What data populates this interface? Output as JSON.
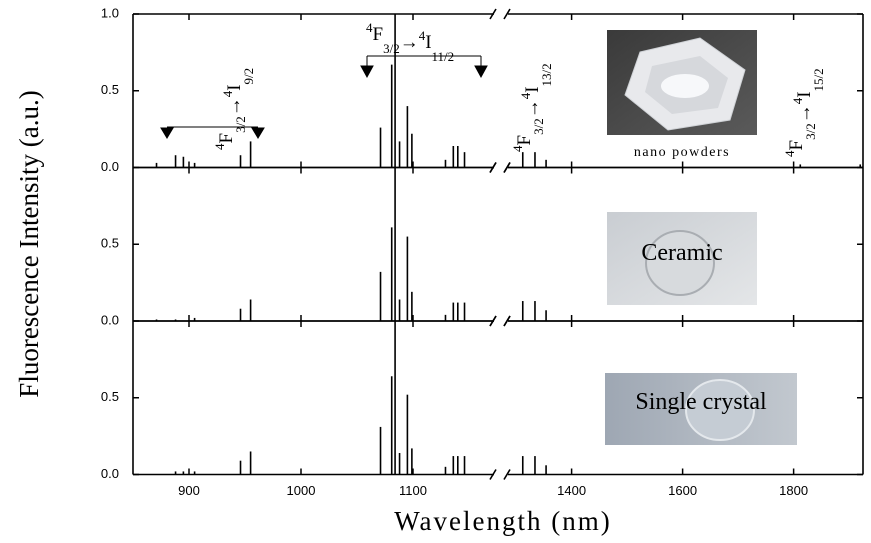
{
  "chart_data": [
    {
      "type": "stem",
      "color": "#000000",
      "inset": "nano powders",
      "xsegments": [
        [
          850,
          1175
        ],
        [
          1280,
          1925
        ]
      ],
      "ylim": [
        0,
        1
      ],
      "yticks": [
        {
          "value": 0,
          "label": "0.0"
        },
        0.5,
        {
          "value": 1,
          "label": "1.0"
        }
      ],
      "x": [
        871,
        888,
        895,
        905,
        946,
        955,
        1071,
        1081,
        1084,
        1088,
        1095,
        1099,
        1129,
        1136,
        1140,
        1146,
        1312,
        1334,
        1354,
        1812,
        1920
      ],
      "values": [
        0.03,
        0.08,
        0.07,
        0.03,
        0.08,
        0.17,
        0.26,
        0.67,
        1.0,
        0.17,
        0.4,
        0.22,
        0.05,
        0.14,
        0.14,
        0.1,
        0.1,
        0.1,
        0.05,
        0.02,
        0.02
      ],
      "annotations": [
        {
          "parts": [
            "4",
            "F",
            "3/2",
            "→",
            "4",
            "I",
            "9/2"
          ]
        },
        {
          "parts": [
            "4",
            "F",
            "3/2",
            "→",
            "4",
            "I",
            "11/2"
          ]
        },
        {
          "parts": [
            "4",
            "F",
            "3/2",
            "→",
            "4",
            "I",
            "13/2"
          ]
        },
        {
          "parts": [
            "4",
            "F",
            "3/2",
            "→",
            "4",
            "I",
            "15/2"
          ]
        }
      ]
    },
    {
      "type": "stem",
      "color": "#000000",
      "inset": "Ceramic",
      "ylabel": "Fluorescence Intensity (a.u.)",
      "xsegments": [
        [
          850,
          1175
        ],
        [
          1280,
          1925
        ]
      ],
      "ylim": [
        0,
        1
      ],
      "yticks": [
        {
          "value": 0,
          "label": "0.0"
        },
        0.5
      ],
      "x": [
        871,
        888,
        905,
        946,
        955,
        1071,
        1081,
        1084,
        1088,
        1095,
        1099,
        1129,
        1136,
        1140,
        1146,
        1312,
        1334,
        1354
      ],
      "values": [
        0.01,
        0.01,
        0.02,
        0.08,
        0.14,
        0.32,
        0.61,
        1.0,
        0.14,
        0.55,
        0.19,
        0.04,
        0.12,
        0.12,
        0.12,
        0.13,
        0.13,
        0.07
      ]
    },
    {
      "type": "stem",
      "color": "#000000",
      "inset": "Single crystal",
      "xlabel": "Wavelength (nm)",
      "xsegments": [
        [
          850,
          1175
        ],
        [
          1280,
          1925
        ]
      ],
      "ylim": [
        0,
        1
      ],
      "yticks": [
        {
          "value": 0,
          "label": "0.0"
        },
        0.5
      ],
      "xticks": [
        900,
        1000,
        1100,
        1400,
        1600,
        1800
      ],
      "x": [
        888,
        895,
        905,
        946,
        955,
        1071,
        1081,
        1084,
        1088,
        1095,
        1099,
        1129,
        1136,
        1140,
        1146,
        1312,
        1334,
        1354
      ],
      "values": [
        0.02,
        0.02,
        0.02,
        0.09,
        0.15,
        0.31,
        0.64,
        1.0,
        0.14,
        0.52,
        0.17,
        0.05,
        0.12,
        0.12,
        0.12,
        0.12,
        0.12,
        0.06
      ]
    }
  ]
}
